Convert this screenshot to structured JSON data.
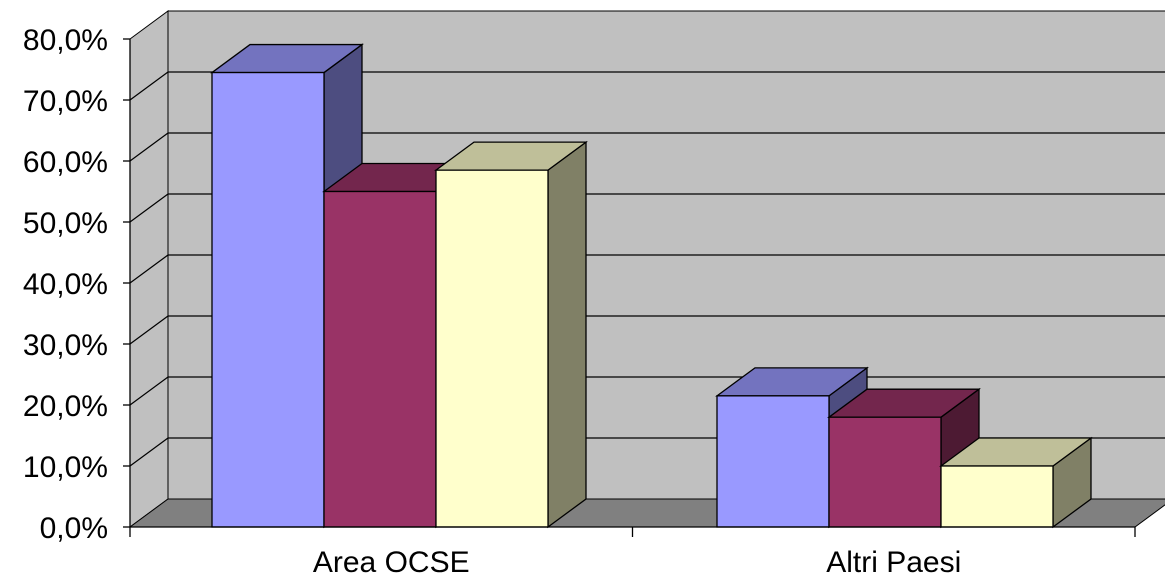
{
  "chart_data": {
    "type": "bar",
    "title": "",
    "xlabel": "",
    "ylabel": "",
    "ylim": [
      0,
      80
    ],
    "yticks": [
      "0,0%",
      "10,0%",
      "20,0%",
      "30,0%",
      "40,0%",
      "50,0%",
      "60,0%",
      "70,0%",
      "80,0%"
    ],
    "categories": [
      "Area OCSE",
      "Altri Paesi"
    ],
    "series": [
      {
        "values": [
          74.5,
          21.5
        ],
        "color": "#9999ff"
      },
      {
        "values": [
          55.0,
          18.0
        ],
        "color": "#993366"
      },
      {
        "values": [
          58.5,
          10.0
        ],
        "color": "#ffffcc"
      }
    ],
    "grid": true,
    "legend": "none",
    "style": "3d-clustered-column",
    "wall_color": "#c0c0c0",
    "floor_color": "#808080"
  }
}
